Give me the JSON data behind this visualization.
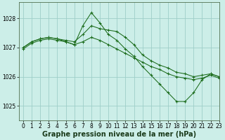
{
  "background_color": "#cceee8",
  "grid_color": "#9ecec8",
  "line_color": "#1a6b1a",
  "xlabel": "Graphe pression niveau de la mer (hPa)",
  "xlabel_fontsize": 7,
  "tick_fontsize": 5.5,
  "xlim": [
    -0.5,
    23
  ],
  "ylim": [
    1024.5,
    1028.55
  ],
  "yticks": [
    1025,
    1026,
    1027,
    1028
  ],
  "xticks": [
    0,
    1,
    2,
    3,
    4,
    5,
    6,
    7,
    8,
    9,
    10,
    11,
    12,
    13,
    14,
    15,
    16,
    17,
    18,
    19,
    20,
    21,
    22,
    23
  ],
  "series": [
    [
      1027.0,
      1027.2,
      1027.3,
      1027.35,
      1027.3,
      1027.2,
      1027.1,
      1027.75,
      1028.2,
      1027.85,
      1027.45,
      1027.25,
      1026.95,
      1026.7,
      1026.35,
      1026.05,
      1025.75,
      1025.45,
      1025.15,
      1025.15,
      1025.45,
      1025.9,
      1026.1,
      1026.0
    ],
    [
      1027.0,
      1027.2,
      1027.3,
      1027.35,
      1027.3,
      1027.25,
      1027.2,
      1027.45,
      1027.75,
      1027.65,
      1027.6,
      1027.55,
      1027.35,
      1027.1,
      1026.75,
      1026.55,
      1026.4,
      1026.3,
      1026.15,
      1026.1,
      1026.0,
      1026.05,
      1026.1,
      1026.0
    ],
    [
      1026.95,
      1027.15,
      1027.25,
      1027.3,
      1027.25,
      1027.2,
      1027.1,
      1027.2,
      1027.35,
      1027.25,
      1027.1,
      1026.95,
      1026.8,
      1026.65,
      1026.5,
      1026.35,
      1026.25,
      1026.1,
      1026.0,
      1025.95,
      1025.9,
      1025.95,
      1026.05,
      1025.95
    ]
  ]
}
